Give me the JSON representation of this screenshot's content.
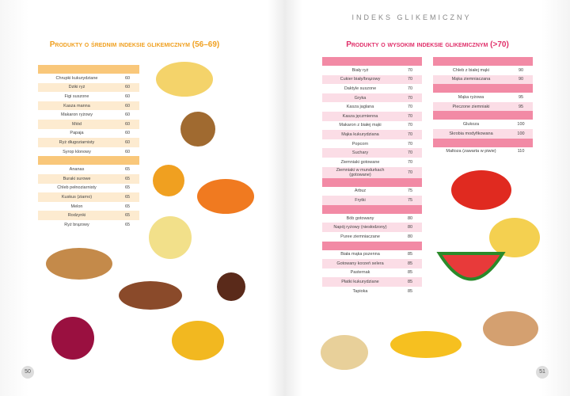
{
  "header": {
    "title": "INDEKS GLIKEMICZNY"
  },
  "left": {
    "title": "Produkty o średnim indeksie glikemicznym (56–69)",
    "page_number": "50",
    "table": {
      "groups": [
        [
          [
            "Chrupki kukurydziane",
            "60"
          ],
          [
            "Dziki ryż",
            "60"
          ],
          [
            "Figi suszone",
            "60"
          ],
          [
            "Kasza manna",
            "60"
          ],
          [
            "Makaron ryżowy",
            "60"
          ],
          [
            "Miód",
            "60"
          ],
          [
            "Papaja",
            "60"
          ],
          [
            "Ryż długoziarnisty",
            "60"
          ],
          [
            "Syrop klonowy",
            "60"
          ]
        ],
        [
          [
            "Ananas",
            "65"
          ],
          [
            "Buraki surowe",
            "65"
          ],
          [
            "Chleb pełnoziarnisty",
            "65"
          ],
          [
            "Kuskus (ziarno)",
            "65"
          ],
          [
            "Melon",
            "65"
          ],
          [
            "Rodzynki",
            "65"
          ],
          [
            "Ryż brązowy",
            "65"
          ]
        ]
      ]
    }
  },
  "right": {
    "title": "Produkty o wysokim indeksie glikemicznym (>70)",
    "page_number": "51",
    "columns": [
      {
        "groups": [
          [
            [
              "Biały ryż",
              "70"
            ],
            [
              "Cukier biały/brązowy",
              "70"
            ],
            [
              "Daktyle suszone",
              "70"
            ],
            [
              "Gryka",
              "70"
            ],
            [
              "Kasza jaglana",
              "70"
            ],
            [
              "Kasza jęczmienna",
              "70"
            ],
            [
              "Makaron z białej mąki",
              "70"
            ],
            [
              "Mąka kukurydziana",
              "70"
            ],
            [
              "Popcorn",
              "70"
            ],
            [
              "Suchary",
              "70"
            ],
            [
              "Ziemniaki gotowane",
              "70"
            ],
            [
              "Ziemniaki w mundurkach (gotowane)",
              "70"
            ]
          ],
          [
            [
              "Arbuz",
              "75"
            ],
            [
              "Frytki",
              "75"
            ]
          ],
          [
            [
              "Bób gotowany",
              "80"
            ],
            [
              "Napój ryżowy (niesłodzony)",
              "80"
            ],
            [
              "Puree ziemniaczane",
              "80"
            ]
          ],
          [
            [
              "Biała mąka pszenna",
              "85"
            ],
            [
              "Gotowany korzeń selera",
              "85"
            ],
            [
              "Pasternak",
              "85"
            ],
            [
              "Płatki kukurydziane",
              "85"
            ],
            [
              "Tapioka",
              "85"
            ]
          ]
        ]
      },
      {
        "groups": [
          [
            [
              "Chleb z białej mąki",
              "90"
            ],
            [
              "Mąka ziemniaczana",
              "90"
            ]
          ],
          [
            [
              "Mąka ryżowa",
              "95"
            ],
            [
              "Pieczone ziemniaki",
              "95"
            ]
          ],
          [
            [
              "Glukoza",
              "100"
            ],
            [
              "Skrobia modyfikowana",
              "100"
            ]
          ],
          [
            [
              "Maltoza (zawarta w piwie)",
              "110"
            ]
          ]
        ]
      }
    ]
  }
}
